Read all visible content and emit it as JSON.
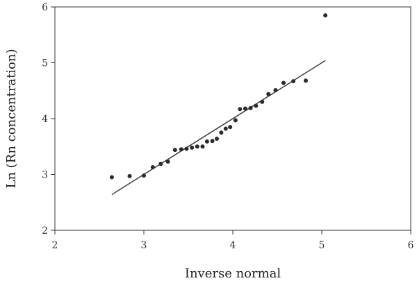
{
  "chart_data": {
    "type": "scatter",
    "title": "",
    "xlabel": "Inverse normal",
    "ylabel": "Ln (Rn concentration)",
    "xlim": [
      2,
      6
    ],
    "ylim": [
      2,
      6
    ],
    "x_ticks": [
      "2",
      "3",
      "4",
      "5",
      "6"
    ],
    "y_ticks": [
      "2",
      "3",
      "4",
      "5",
      "6"
    ],
    "grid": false,
    "colors": {
      "points": "#2b2b2b",
      "fit_line": "#404040",
      "axes": "#333333"
    },
    "series": [
      {
        "type": "scatter",
        "points": [
          [
            2.64,
            2.95
          ],
          [
            2.84,
            2.97
          ],
          [
            3.0,
            2.98
          ],
          [
            3.1,
            3.13
          ],
          [
            3.19,
            3.19
          ],
          [
            3.27,
            3.23
          ],
          [
            3.35,
            3.44
          ],
          [
            3.42,
            3.45
          ],
          [
            3.48,
            3.46
          ],
          [
            3.54,
            3.48
          ],
          [
            3.6,
            3.5
          ],
          [
            3.66,
            3.5
          ],
          [
            3.71,
            3.59
          ],
          [
            3.77,
            3.6
          ],
          [
            3.82,
            3.64
          ],
          [
            3.87,
            3.75
          ],
          [
            3.92,
            3.82
          ],
          [
            3.97,
            3.85
          ],
          [
            4.03,
            3.97
          ],
          [
            4.08,
            4.17
          ],
          [
            4.14,
            4.18
          ],
          [
            4.2,
            4.19
          ],
          [
            4.26,
            4.23
          ],
          [
            4.33,
            4.3
          ],
          [
            4.4,
            4.44
          ],
          [
            4.48,
            4.51
          ],
          [
            4.57,
            4.64
          ],
          [
            4.68,
            4.67
          ],
          [
            4.82,
            4.68
          ],
          [
            5.04,
            5.85
          ]
        ]
      },
      {
        "type": "line",
        "points": [
          [
            2.64,
            2.64
          ],
          [
            5.04,
            5.04
          ]
        ]
      }
    ]
  }
}
